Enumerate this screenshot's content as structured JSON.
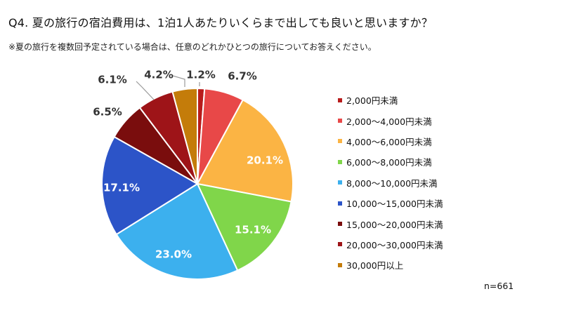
{
  "title": "Q4. 夏の旅行の宿泊費用は、1泊1人あたりいくらまで出しても良いと思いますか？",
  "subtitle": "※夏の旅行を複数回予定されている場合は、任意のどれかひとつの旅行についてお答えください。",
  "note": "n=661",
  "chart_data": {
    "type": "pie",
    "title": "Q4. 夏の旅行の宿泊費用は、1泊1人あたりいくらまで出しても良いと思いますか？",
    "unit": "%",
    "categories": [
      "2,000円未満",
      "2,000～4,000円未満",
      "4,000～6,000円未満",
      "6,000～8,000円未満",
      "8,000～10,000円未満",
      "10,000～15,000円未満",
      "15,000～20,000円未満",
      "20,000～30,000円未満",
      "30,000円以上"
    ],
    "values": [
      1.2,
      6.7,
      20.1,
      15.1,
      23.0,
      17.1,
      6.5,
      6.1,
      4.2
    ],
    "labels": [
      "1.2%",
      "6.7%",
      "20.1%",
      "15.1%",
      "23.0%",
      "17.1%",
      "6.5%",
      "6.1%",
      "4.2%"
    ],
    "colors": [
      "#b81c1c",
      "#e84848",
      "#fbb444",
      "#80d64a",
      "#3cb0ee",
      "#2c54c8",
      "#7a0d0d",
      "#9e1418",
      "#c47c0a"
    ],
    "legend_position": "right",
    "start": "12 o'clock, clockwise"
  }
}
